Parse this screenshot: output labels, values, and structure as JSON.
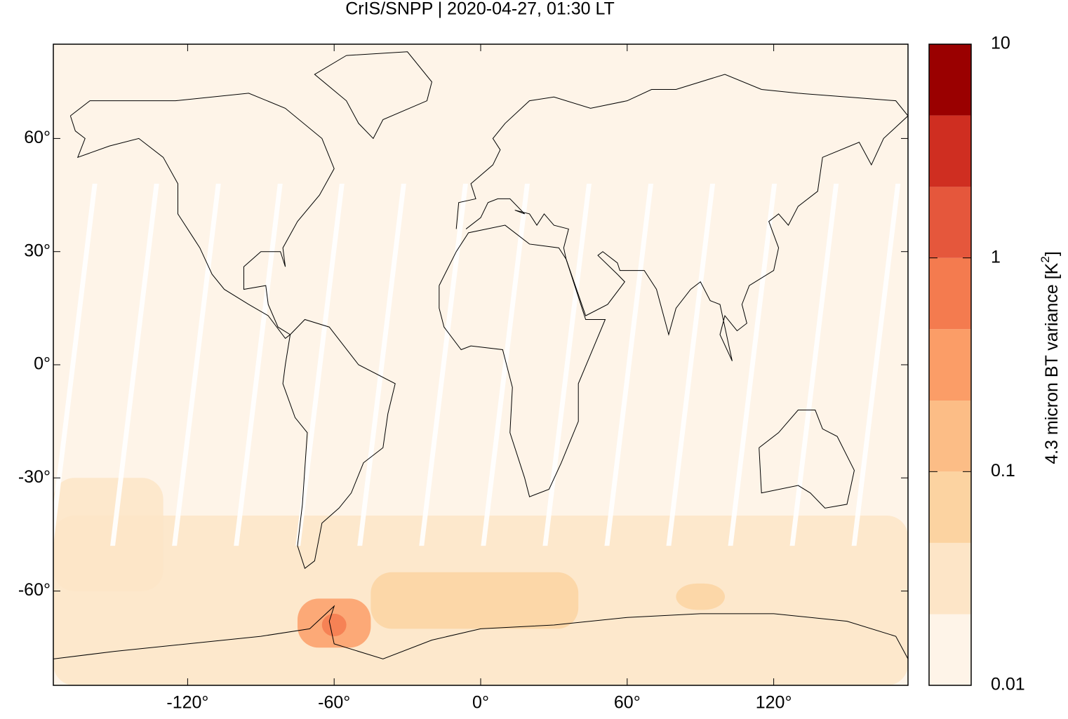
{
  "chart_data": {
    "type": "map",
    "title": "CrIS/SNPP | 2020-04-27, 01:30 LT",
    "xlim": [
      -175,
      175
    ],
    "ylim": [
      -85,
      85
    ],
    "xticks": [
      {
        "value": -120,
        "label": "-120°"
      },
      {
        "value": -60,
        "label": "-60°"
      },
      {
        "value": 0,
        "label": "0°"
      },
      {
        "value": 60,
        "label": "60°"
      },
      {
        "value": 120,
        "label": "120°"
      }
    ],
    "yticks": [
      {
        "value": -60,
        "label": "-60°"
      },
      {
        "value": -30,
        "label": "-30°"
      },
      {
        "value": 0,
        "label": "0°"
      },
      {
        "value": 30,
        "label": "30°"
      },
      {
        "value": 60,
        "label": "60°"
      }
    ],
    "colorbar": {
      "label": "4.3 micron BT variance [K",
      "label_sup": "2",
      "label_end": "]",
      "log": true,
      "lim": [
        0.01,
        10
      ],
      "ticks": [
        0.01,
        0.1,
        1,
        10
      ],
      "levels": [
        0.01,
        0.0215,
        0.0464,
        0.1,
        0.215,
        0.464,
        1,
        2.15,
        4.64,
        10
      ],
      "colors": [
        "#fef4e8",
        "#fde5c7",
        "#fcd3a1",
        "#fcbd86",
        "#fb9d67",
        "#f47b4f",
        "#e5573c",
        "#cf2e21",
        "#9a0000"
      ]
    },
    "background_value": 0.015,
    "patches": [
      {
        "lon": [
          -175,
          175
        ],
        "lat": [
          -85,
          -40
        ],
        "value": 0.025
      },
      {
        "lon": [
          -175,
          -130
        ],
        "lat": [
          -60,
          -30
        ],
        "value": 0.03
      },
      {
        "lon": [
          -75,
          -45
        ],
        "lat": [
          -75,
          -62
        ],
        "value": 0.25
      },
      {
        "lon": [
          -65,
          -55
        ],
        "lat": [
          -72,
          -66
        ],
        "value": 0.5
      },
      {
        "lon": [
          -45,
          40
        ],
        "lat": [
          -70,
          -55
        ],
        "value": 0.05
      },
      {
        "lon": [
          80,
          100
        ],
        "lat": [
          -65,
          -58
        ],
        "value": 0.08
      }
    ]
  }
}
